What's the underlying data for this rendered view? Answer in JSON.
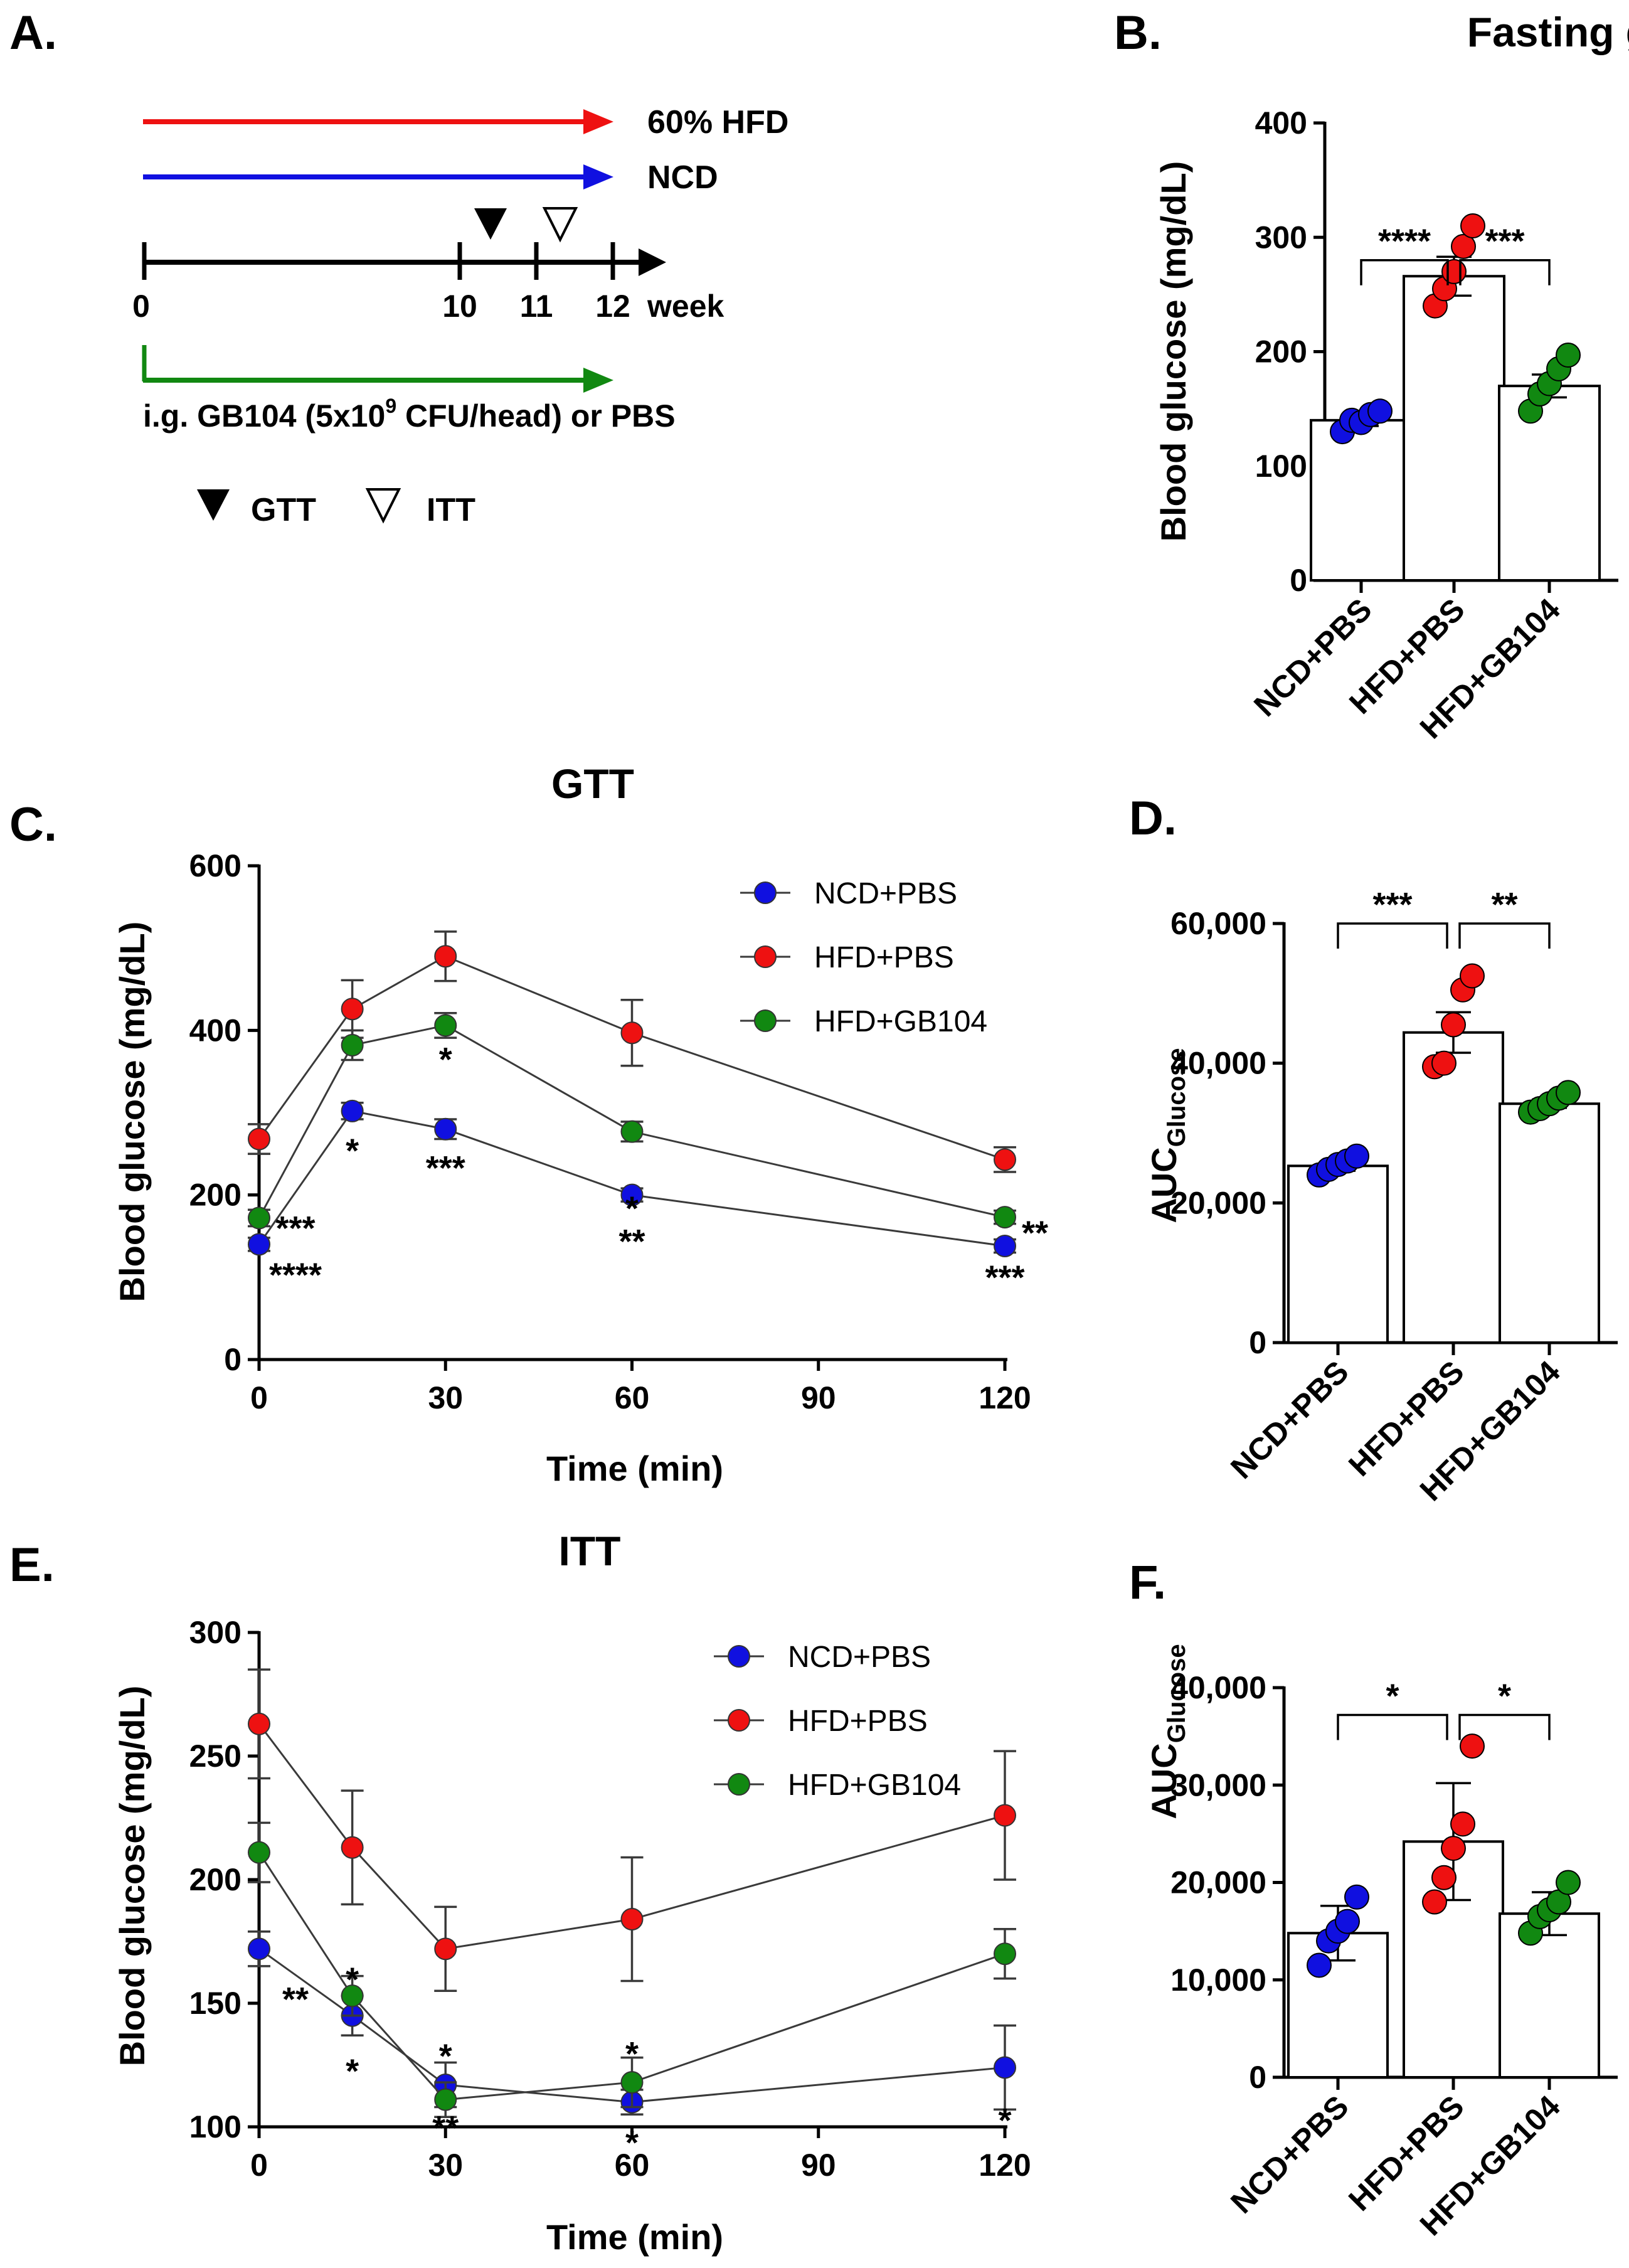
{
  "colors": {
    "ncd": "#1010e0",
    "hfd": "#ee1111",
    "gb104": "#118811",
    "axis": "#000000"
  },
  "panelA": {
    "label": "A.",
    "arrows": [
      {
        "name": "60% HFD",
        "color": "#ee1111"
      },
      {
        "name": "NCD",
        "color": "#1010e0"
      }
    ],
    "timeline_ticks": [
      "0",
      "10",
      "11",
      "12"
    ],
    "week_label": "week",
    "treatment_prefix": "i.g. GB104 (5x10",
    "treatment_sup": "9",
    "treatment_suffix": " CFU/head) or PBS",
    "legend_gtt": "GTT",
    "legend_itt": "ITT"
  },
  "chart_data": [
    {
      "id": "B",
      "panel_label": "B.",
      "type": "bar",
      "title": "Fasting glucose",
      "ylabel": "Blood glucose (mg/dL)",
      "ylim": [
        0,
        400
      ],
      "yticks": [
        "0",
        "100",
        "200",
        "300",
        "400"
      ],
      "categories": [
        "NCD+PBS",
        "HFD+PBS",
        "HFD+GB104"
      ],
      "values": [
        140,
        266,
        170
      ],
      "errors": [
        5,
        17,
        10
      ],
      "points": [
        [
          130,
          140,
          138,
          145,
          148
        ],
        [
          240,
          255,
          270,
          292,
          310
        ],
        [
          148,
          163,
          172,
          185,
          197
        ]
      ],
      "significance": [
        {
          "from": 0,
          "to": 1,
          "label": "****"
        },
        {
          "from": 1,
          "to": 2,
          "label": "***"
        }
      ]
    },
    {
      "id": "C",
      "panel_label": "C.",
      "type": "line",
      "title": "GTT",
      "xlabel": "Time (min)",
      "ylabel": "Blood glucose (mg/dL)",
      "xlim": [
        0,
        120
      ],
      "ylim": [
        0,
        600
      ],
      "xticks": [
        "0",
        "30",
        "60",
        "90",
        "120"
      ],
      "yticks": [
        "0",
        "200",
        "400",
        "600"
      ],
      "x": [
        0,
        15,
        30,
        60,
        120
      ],
      "series": [
        {
          "name": "NCD+PBS",
          "color": "ncd",
          "values": [
            140,
            302,
            280,
            200,
            138
          ],
          "errors": [
            8,
            10,
            12,
            8,
            8
          ]
        },
        {
          "name": "HFD+PBS",
          "color": "hfd",
          "values": [
            268,
            426,
            490,
            397,
            243
          ],
          "errors": [
            18,
            35,
            30,
            40,
            15
          ]
        },
        {
          "name": "HFD+GB104",
          "color": "gb104",
          "values": [
            172,
            382,
            406,
            277,
            173
          ],
          "errors": [
            10,
            18,
            15,
            12,
            8
          ]
        }
      ],
      "annotations": [
        {
          "x": 0,
          "y": 161,
          "text": "***"
        },
        {
          "x": 0,
          "y": 104,
          "text": "****"
        },
        {
          "x": 15,
          "y": 255,
          "text": "*"
        },
        {
          "x": 30,
          "y": 366,
          "text": "*"
        },
        {
          "x": 30,
          "y": 234,
          "text": "***"
        },
        {
          "x": 60,
          "y": 185,
          "text": "*"
        },
        {
          "x": 60,
          "y": 145,
          "text": "**"
        },
        {
          "x": 120,
          "y": 155,
          "text": "**"
        },
        {
          "x": 120,
          "y": 101,
          "text": "***"
        }
      ]
    },
    {
      "id": "D",
      "panel_label": "D.",
      "type": "bar",
      "title": "",
      "ylabel_main": "AUC",
      "ylabel_sub": "Glucose",
      "ylim": [
        0,
        60000
      ],
      "yticks": [
        "0",
        "20,000",
        "40,000",
        "60,000"
      ],
      "categories": [
        "NCD+PBS",
        "HFD+PBS",
        "HFD+GB104"
      ],
      "values": [
        25300,
        44400,
        34200
      ],
      "errors": [
        700,
        2900,
        600
      ],
      "points": [
        [
          24000,
          24800,
          25500,
          26000,
          26700
        ],
        [
          39500,
          40000,
          45500,
          50500,
          52500
        ],
        [
          33000,
          33500,
          34200,
          35000,
          35800
        ]
      ],
      "significance": [
        {
          "from": 0,
          "to": 1,
          "label": "***"
        },
        {
          "from": 1,
          "to": 2,
          "label": "**"
        }
      ]
    },
    {
      "id": "E",
      "panel_label": "E.",
      "type": "line",
      "title": "ITT",
      "xlabel": "Time (min)",
      "ylabel": "Blood glucose (mg/dL)",
      "xlim": [
        0,
        120
      ],
      "ylim": [
        100,
        300
      ],
      "xticks": [
        "0",
        "30",
        "60",
        "90",
        "120"
      ],
      "yticks": [
        "100",
        "150",
        "200",
        "250",
        "300"
      ],
      "x": [
        0,
        15,
        30,
        60,
        120
      ],
      "series": [
        {
          "name": "NCD+PBS",
          "color": "ncd",
          "values": [
            172,
            145,
            117,
            110,
            124
          ],
          "errors": [
            7,
            8,
            9,
            5,
            17
          ]
        },
        {
          "name": "HFD+PBS",
          "color": "hfd",
          "values": [
            263,
            213,
            172,
            184,
            226
          ],
          "errors": [
            22,
            23,
            17,
            25,
            26
          ]
        },
        {
          "name": "HFD+GB104",
          "color": "gb104",
          "values": [
            211,
            153,
            111,
            118,
            170
          ],
          "errors": [
            12,
            8,
            7,
            10,
            10
          ]
        }
      ],
      "annotations": [
        {
          "x": 0,
          "y": 152,
          "text": "**"
        },
        {
          "x": 15,
          "y": 160,
          "text": "*"
        },
        {
          "x": 15,
          "y": 123,
          "text": "*"
        },
        {
          "x": 30,
          "y": 129,
          "text": "*"
        },
        {
          "x": 30,
          "y": 100,
          "text": "**"
        },
        {
          "x": 60,
          "y": 130,
          "text": "*"
        },
        {
          "x": 60,
          "y": 94,
          "text": "*"
        },
        {
          "x": 120,
          "y": 103,
          "text": "*"
        }
      ]
    },
    {
      "id": "F",
      "panel_label": "F.",
      "type": "bar",
      "title": "",
      "ylabel_main": "AUC",
      "ylabel_sub": "Glucose",
      "ylim": [
        0,
        40000
      ],
      "yticks": [
        "0",
        "10,000",
        "20,000",
        "30,000",
        "40,000"
      ],
      "categories": [
        "NCD+PBS",
        "HFD+PBS",
        "HFD+GB104"
      ],
      "values": [
        14800,
        24200,
        16800
      ],
      "errors": [
        2800,
        6000,
        2200
      ],
      "points": [
        [
          11500,
          14000,
          15000,
          16000,
          18500
        ],
        [
          18000,
          20500,
          23500,
          26000,
          34000
        ],
        [
          14800,
          16500,
          17200,
          18000,
          20000
        ]
      ],
      "significance": [
        {
          "from": 0,
          "to": 1,
          "label": "*"
        },
        {
          "from": 1,
          "to": 2,
          "label": "*"
        }
      ]
    }
  ]
}
